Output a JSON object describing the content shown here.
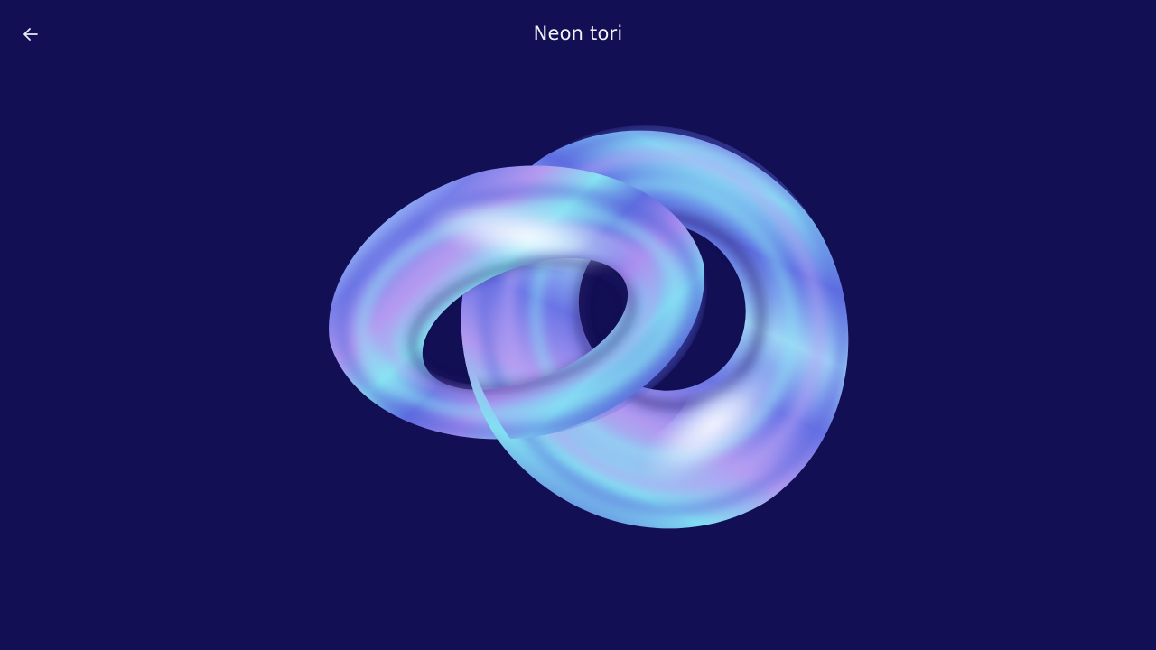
{
  "header": {
    "title": "Neon tori",
    "back_icon": "arrow-left-icon"
  },
  "scene": {
    "object": "linked-tori-3d",
    "background_color": "#120f54",
    "colors": {
      "base": "#5f6fe8",
      "violet": "#9a7be8",
      "cyan": "#7ee8f0",
      "highlight": "#f5f7ff"
    }
  }
}
